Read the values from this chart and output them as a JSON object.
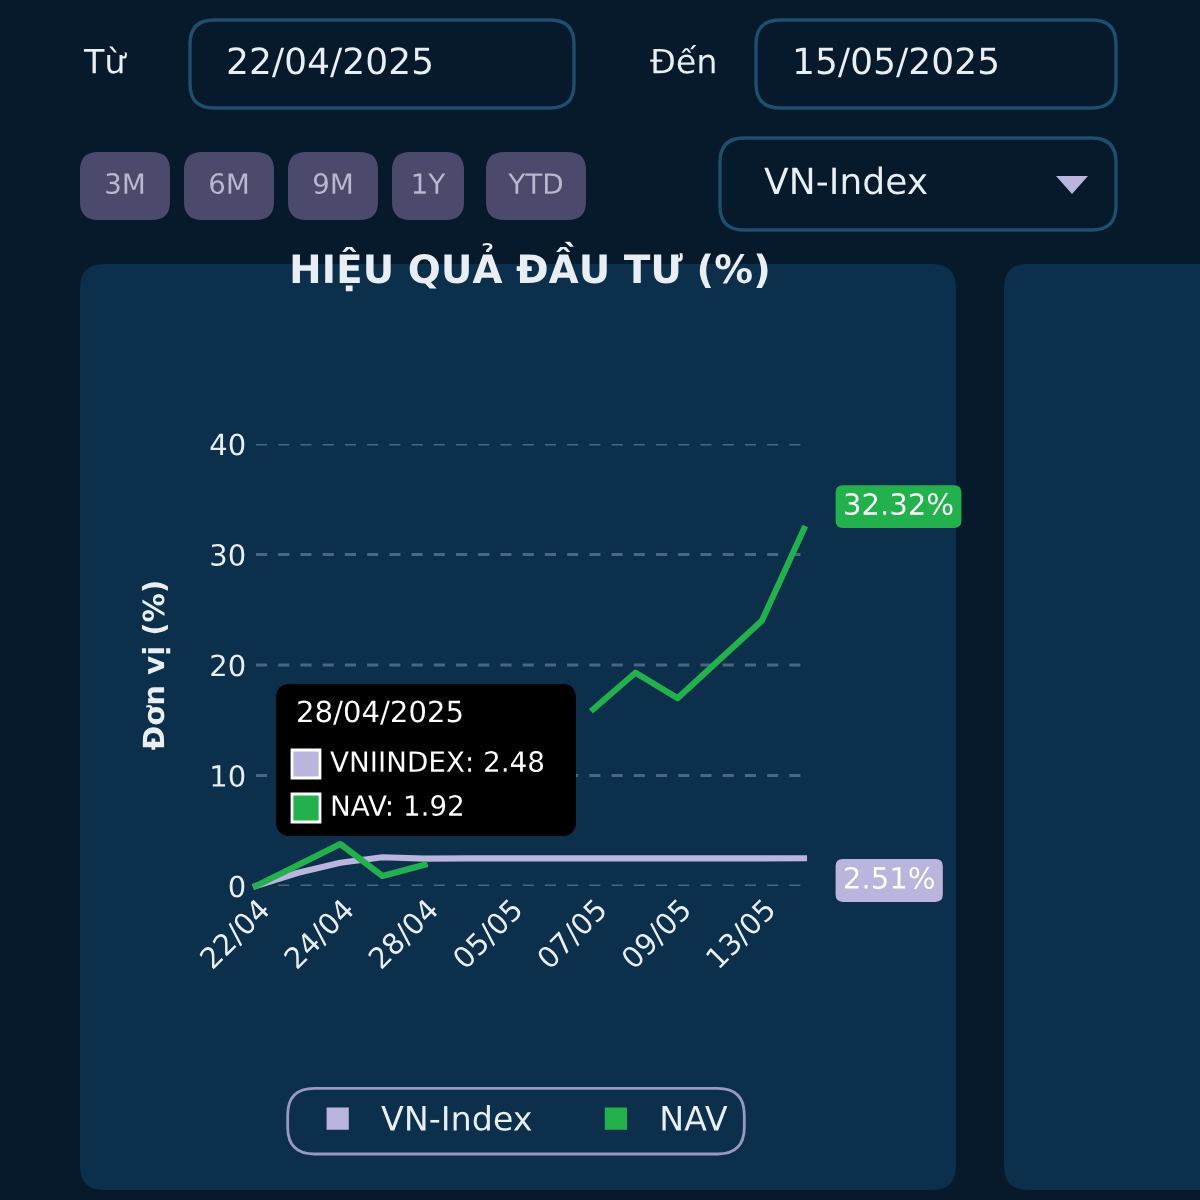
{
  "chart_data": {
    "type": "line",
    "title": "HIỆU QUẢ ĐẦU TƯ (%)",
    "ylabel": "Đơn vị (%)",
    "categories": [
      "22/04",
      null,
      "24/04",
      null,
      "28/04",
      null,
      "05/05",
      null,
      "07/05",
      null,
      "09/05",
      null,
      "13/05",
      null
    ],
    "series": [
      {
        "name": "VN-Index",
        "color": "#b9b5dd",
        "values": [
          0,
          1.2,
          2.1,
          2.6,
          2.48,
          2.5,
          2.5,
          2.5,
          2.5,
          2.5,
          2.5,
          2.5,
          2.5,
          2.51
        ],
        "value_labels": [
          null,
          null,
          null,
          null,
          null,
          null,
          null,
          null,
          null,
          null,
          null,
          null,
          null,
          "2.51%"
        ]
      },
      {
        "name": "NAV",
        "color": "#22b14c",
        "values": [
          0,
          1.9,
          3.8,
          0.9,
          1.92,
          null,
          null,
          null,
          16,
          19.3,
          17,
          20.5,
          24,
          32.32
        ],
        "value_labels": [
          null,
          null,
          null,
          null,
          null,
          null,
          null,
          null,
          null,
          null,
          null,
          null,
          null,
          "32.32%"
        ]
      }
    ],
    "ylim": [
      0,
      40
    ],
    "yticks": [
      0,
      10,
      20,
      30,
      40
    ],
    "grid": "y",
    "legend": "bottom",
    "marker": "none",
    "line_style": "solid",
    "annotations": [
      "Từ",
      "22/04/2025",
      "Đến",
      "15/05/2025",
      "3M",
      "6M",
      "9M",
      "1Y",
      "YTD",
      "VN-Index",
      "28/04/2025",
      "VNIINDEX: 2.48",
      "NAV: 1.92"
    ]
  }
}
